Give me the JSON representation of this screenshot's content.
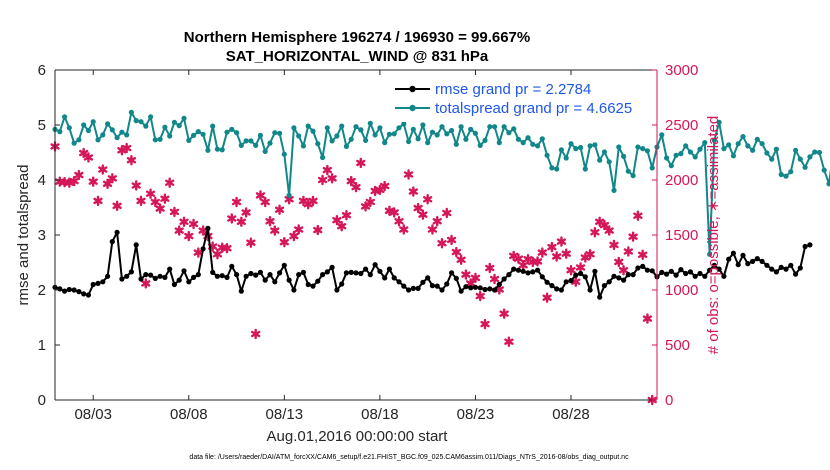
{
  "chart_data": {
    "type": "line",
    "title": "Northern Hemisphere 196274 / 196930 = 99.667%",
    "subtitle": "SAT_HORIZONTAL_WIND @ 831 hPa",
    "xlabel": "Aug.01,2016 00:00:00 start",
    "ylabel_left": "rmse and totalspread",
    "ylabel_right": "# of obs: o=possible; ∗=assimilated",
    "footnote": "data file: /Users/raeder/DAI/ATM_forcXX/CAM6_setup/f.e21.FHIST_BGC.f09_025.CAM6assim.011/Diags_NTrS_2016-08/obs_diag_output.nc",
    "xlim": [
      1,
      32.5
    ],
    "ylim_left": [
      0,
      6
    ],
    "ylim_right": [
      0,
      3000
    ],
    "x_ticks": [
      3,
      8,
      13,
      18,
      23,
      28
    ],
    "x_tick_labels": [
      "08/03",
      "08/08",
      "08/13",
      "08/18",
      "08/23",
      "08/28"
    ],
    "y_ticks_left": [
      0,
      1,
      2,
      3,
      4,
      5,
      6
    ],
    "y_ticks_right": [
      0,
      500,
      1000,
      1500,
      2000,
      2500,
      3000
    ],
    "grid": false,
    "legend_placement": "top-right",
    "colors": {
      "rmse": "#000000",
      "spread": "#12878a",
      "obs": "#d5175a",
      "right_axis": "#d5175a",
      "legend_text": "#1f57e6"
    },
    "series": [
      {
        "name": "rmse grand pr = 2.2784",
        "axis": "left",
        "color": "#000000",
        "marker": "circle",
        "x_start": 1.0,
        "x_step": 0.25,
        "values": [
          2.05,
          2.02,
          1.98,
          2.01,
          2.0,
          1.97,
          1.93,
          1.91,
          2.1,
          2.12,
          2.15,
          2.25,
          2.88,
          3.05,
          2.2,
          2.25,
          2.33,
          2.82,
          2.2,
          2.28,
          2.27,
          2.21,
          2.25,
          2.23,
          2.38,
          2.1,
          2.18,
          2.35,
          2.15,
          2.23,
          2.28,
          2.75,
          3.12,
          2.32,
          2.25,
          2.26,
          2.23,
          2.43,
          2.28,
          1.98,
          2.25,
          2.3,
          2.27,
          2.32,
          2.18,
          2.28,
          2.15,
          2.31,
          2.45,
          2.18,
          2.0,
          2.28,
          2.32,
          2.1,
          2.07,
          2.16,
          2.28,
          2.33,
          2.41,
          2.0,
          2.11,
          2.31,
          2.32,
          2.31,
          2.3,
          2.38,
          2.28,
          2.46,
          2.34,
          2.22,
          2.38,
          2.22,
          2.15,
          2.07,
          2.0,
          2.03,
          2.03,
          2.14,
          2.22,
          2.08,
          2.07,
          2.0,
          2.11,
          2.31,
          2.21,
          1.98,
          2.06,
          2.04,
          2.05,
          2.04,
          2.01,
          2.02,
          2.0,
          2.1,
          2.2,
          2.28,
          2.38,
          2.36,
          2.34,
          2.31,
          2.33,
          2.36,
          2.24,
          2.14,
          2.08,
          2.02,
          2.0,
          2.15,
          2.17,
          2.27,
          2.3,
          2.24,
          2.0,
          2.34,
          1.87,
          2.08,
          2.15,
          2.25,
          2.22,
          2.18,
          2.28,
          2.28,
          2.4,
          2.43,
          2.36,
          2.35,
          2.24,
          2.32,
          2.29,
          2.34,
          2.27,
          2.37,
          2.3,
          2.33,
          2.25,
          2.3,
          2.25,
          2.36,
          2.45,
          2.38,
          2.25,
          2.56,
          2.67,
          2.46,
          2.63,
          2.48,
          2.52,
          2.57,
          2.52,
          2.45,
          2.38,
          2.33,
          2.41,
          2.38,
          2.45,
          2.29,
          2.4,
          2.79,
          2.82
        ]
      },
      {
        "name": "totalspread grand pr = 4.6625",
        "axis": "left",
        "color": "#12878a",
        "marker": "circle",
        "x_start": 1.0,
        "x_step": 0.25,
        "values": [
          4.92,
          4.88,
          5.15,
          4.95,
          4.67,
          4.73,
          5.0,
          4.9,
          5.06,
          4.73,
          4.82,
          5.02,
          4.91,
          4.77,
          4.87,
          4.82,
          5.23,
          5.08,
          5.06,
          4.98,
          5.15,
          4.73,
          4.74,
          4.96,
          4.8,
          5.05,
          4.99,
          5.12,
          4.72,
          4.81,
          4.88,
          4.83,
          4.54,
          4.98,
          4.56,
          4.55,
          4.87,
          4.92,
          4.86,
          4.63,
          4.71,
          4.71,
          4.63,
          4.81,
          4.52,
          4.67,
          4.86,
          4.85,
          4.47,
          3.72,
          4.95,
          4.8,
          4.62,
          4.98,
          4.89,
          4.66,
          4.41,
          4.95,
          4.71,
          4.8,
          4.98,
          4.61,
          4.74,
          4.97,
          4.91,
          4.72,
          5.03,
          4.82,
          4.95,
          4.68,
          4.83,
          4.84,
          4.95,
          5.02,
          4.7,
          4.92,
          4.75,
          5.0,
          4.68,
          4.87,
          4.82,
          4.97,
          4.84,
          4.9,
          4.65,
          4.97,
          4.74,
          4.92,
          4.85,
          4.63,
          4.72,
          4.97,
          4.97,
          4.68,
          4.97,
          4.86,
          4.93,
          4.74,
          4.68,
          4.77,
          4.65,
          4.62,
          4.75,
          4.45,
          4.22,
          4.2,
          4.55,
          4.4,
          4.66,
          4.57,
          4.59,
          4.2,
          4.62,
          4.64,
          4.36,
          4.51,
          4.33,
          3.81,
          4.6,
          4.43,
          4.16,
          4.08,
          4.6,
          4.57,
          4.53,
          4.22,
          4.6,
          4.82,
          4.4,
          4.26,
          4.45,
          4.48,
          4.62,
          4.51,
          4.42,
          4.56,
          4.68,
          2.65,
          4.72,
          5.05,
          4.57,
          4.64,
          4.44,
          4.66,
          4.79,
          4.62,
          4.54,
          4.74,
          4.66,
          4.49,
          4.38,
          4.56,
          4.1,
          4.07,
          4.15,
          4.54,
          4.38,
          4.23,
          4.42,
          4.51,
          4.5,
          4.18,
          3.93,
          4.58,
          4.95,
          4.65
        ]
      },
      {
        "name": "obs assimilated",
        "axis": "right",
        "color": "#d5175a",
        "marker": "asterisk",
        "points": [
          [
            1.0,
            2305
          ],
          [
            1.25,
            1985
          ],
          [
            1.5,
            1980
          ],
          [
            1.75,
            1975
          ],
          [
            2.0,
            1990
          ],
          [
            2.25,
            2045
          ],
          [
            2.5,
            2245
          ],
          [
            2.75,
            2205
          ],
          [
            3.0,
            1985
          ],
          [
            3.25,
            1810
          ],
          [
            3.5,
            2095
          ],
          [
            3.75,
            1965
          ],
          [
            4.0,
            2015
          ],
          [
            4.25,
            1765
          ],
          [
            4.5,
            2270
          ],
          [
            4.75,
            2290
          ],
          [
            5.0,
            2180
          ],
          [
            5.25,
            1950
          ],
          [
            5.5,
            1810
          ],
          [
            5.75,
            1060
          ],
          [
            6.0,
            1875
          ],
          [
            6.25,
            1800
          ],
          [
            6.5,
            1740
          ],
          [
            6.75,
            1830
          ],
          [
            7.0,
            1975
          ],
          [
            7.25,
            1710
          ],
          [
            7.5,
            1540
          ],
          [
            7.75,
            1620
          ],
          [
            8.0,
            1490
          ],
          [
            8.25,
            1600
          ],
          [
            8.5,
            1340
          ],
          [
            8.75,
            1540
          ],
          [
            9.0,
            1490
          ],
          [
            9.25,
            1395
          ],
          [
            9.5,
            1325
          ],
          [
            9.75,
            1385
          ],
          [
            10.0,
            1380
          ],
          [
            10.25,
            1650
          ],
          [
            10.5,
            1800
          ],
          [
            10.75,
            1620
          ],
          [
            11.0,
            1705
          ],
          [
            11.25,
            1430
          ],
          [
            11.5,
            600
          ],
          [
            11.75,
            1860
          ],
          [
            12.0,
            1800
          ],
          [
            12.25,
            1625
          ],
          [
            12.5,
            1540
          ],
          [
            12.75,
            1730
          ],
          [
            13.0,
            1435
          ],
          [
            13.25,
            1825
          ],
          [
            13.5,
            1490
          ],
          [
            13.75,
            1550
          ],
          [
            14.0,
            1810
          ],
          [
            14.25,
            1780
          ],
          [
            14.5,
            1810
          ],
          [
            14.75,
            1545
          ],
          [
            15.0,
            2000
          ],
          [
            15.25,
            2090
          ],
          [
            15.5,
            2015
          ],
          [
            15.75,
            1635
          ],
          [
            16.0,
            1580
          ],
          [
            16.25,
            1680
          ],
          [
            16.5,
            1990
          ],
          [
            16.75,
            1935
          ],
          [
            17.0,
            2155
          ],
          [
            17.25,
            1760
          ],
          [
            17.5,
            1800
          ],
          [
            17.75,
            1900
          ],
          [
            18.0,
            1910
          ],
          [
            18.25,
            1945
          ],
          [
            18.5,
            1720
          ],
          [
            18.75,
            1705
          ],
          [
            19.0,
            1625
          ],
          [
            19.25,
            1550
          ],
          [
            19.5,
            2050
          ],
          [
            19.75,
            1895
          ],
          [
            20.0,
            1745
          ],
          [
            20.25,
            1685
          ],
          [
            20.5,
            1825
          ],
          [
            20.75,
            1550
          ],
          [
            21.0,
            1625
          ],
          [
            21.25,
            1425
          ],
          [
            21.5,
            1700
          ],
          [
            21.75,
            1455
          ],
          [
            22.0,
            1345
          ],
          [
            22.25,
            1275
          ],
          [
            22.5,
            1140
          ],
          [
            22.75,
            1060
          ],
          [
            23.0,
            1110
          ],
          [
            23.25,
            945
          ],
          [
            23.5,
            690
          ],
          [
            23.75,
            1200
          ],
          [
            24.0,
            1100
          ],
          [
            24.25,
            1005
          ],
          [
            24.5,
            785
          ],
          [
            24.75,
            530
          ],
          [
            25.0,
            1310
          ],
          [
            25.25,
            1285
          ],
          [
            25.5,
            1225
          ],
          [
            25.75,
            1280
          ],
          [
            26.0,
            1255
          ],
          [
            26.25,
            1260
          ],
          [
            26.5,
            1340
          ],
          [
            26.75,
            930
          ],
          [
            27.0,
            1390
          ],
          [
            27.25,
            1305
          ],
          [
            27.5,
            1440
          ],
          [
            27.75,
            1330
          ],
          [
            28.0,
            1180
          ],
          [
            28.25,
            1075
          ],
          [
            28.5,
            1205
          ],
          [
            28.75,
            1295
          ],
          [
            29.0,
            1325
          ],
          [
            29.25,
            1525
          ],
          [
            29.5,
            1620
          ],
          [
            29.75,
            1590
          ],
          [
            30.0,
            1540
          ],
          [
            30.25,
            1410
          ],
          [
            30.5,
            1255
          ],
          [
            30.75,
            1180
          ],
          [
            31.0,
            1350
          ],
          [
            31.25,
            1485
          ],
          [
            31.5,
            1675
          ],
          [
            31.75,
            1320
          ],
          [
            32.0,
            740
          ],
          [
            32.25,
            0
          ]
        ]
      }
    ]
  }
}
